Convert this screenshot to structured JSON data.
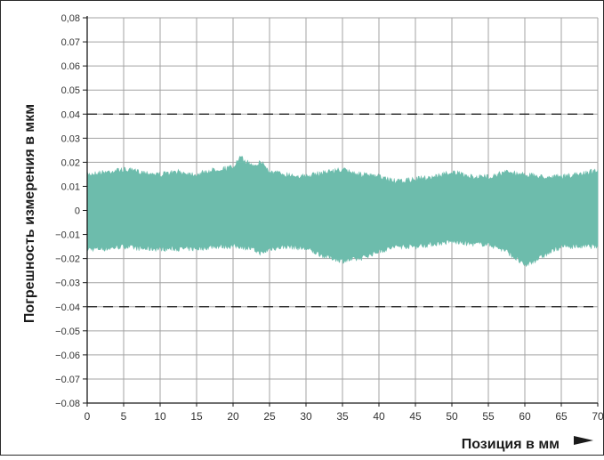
{
  "chart_data": {
    "type": "area",
    "xlabel": "Позиция в мм",
    "ylabel": "Погрешность измерения в мкм",
    "xlim": [
      0,
      70
    ],
    "ylim": [
      -0.08,
      0.08
    ],
    "x_ticks": [
      0,
      5,
      10,
      15,
      20,
      25,
      30,
      35,
      40,
      45,
      50,
      55,
      60,
      65,
      70
    ],
    "y_ticks": [
      0.08,
      0.07,
      0.06,
      0.05,
      0.04,
      0.03,
      0.02,
      0.01,
      0,
      -0.01,
      -0.02,
      -0.03,
      -0.04,
      -0.05,
      -0.06,
      -0.07,
      -0.08
    ],
    "x_tick_labels": [
      "0",
      "5",
      "10",
      "15",
      "20",
      "25",
      "30",
      "35",
      "40",
      "45",
      "50",
      "55",
      "60",
      "65",
      "70"
    ],
    "y_tick_labels": [
      "0,08",
      "0.07",
      "0.06",
      "0.05",
      "0.04",
      "0.03",
      "0.02",
      "0.01",
      "0",
      "−0.01",
      "−0.02",
      "−0.03",
      "−0.04",
      "−0.05",
      "−0.06",
      "−0.07",
      "−0.08"
    ],
    "grid": true,
    "tolerance_lines": [
      0.04,
      -0.04
    ],
    "series": [
      {
        "color": "#6dbcac",
        "x": [
          0,
          2.5,
          5,
          7.5,
          10,
          12.5,
          15,
          17.5,
          20,
          21,
          22.5,
          24,
          25,
          27.5,
          30,
          32.5,
          35,
          37.5,
          40,
          42.5,
          45,
          47.5,
          50,
          52.5,
          55,
          57.5,
          60,
          62.5,
          65,
          67.5,
          70
        ],
        "upper": [
          0.016,
          0.017,
          0.018,
          0.017,
          0.016,
          0.017,
          0.016,
          0.018,
          0.019,
          0.023,
          0.02,
          0.021,
          0.017,
          0.016,
          0.015,
          0.017,
          0.018,
          0.016,
          0.015,
          0.013,
          0.014,
          0.015,
          0.017,
          0.015,
          0.015,
          0.017,
          0.016,
          0.015,
          0.015,
          0.016,
          0.018
        ],
        "lower": [
          -0.017,
          -0.017,
          -0.016,
          -0.017,
          -0.017,
          -0.017,
          -0.017,
          -0.016,
          -0.016,
          -0.016,
          -0.017,
          -0.019,
          -0.017,
          -0.016,
          -0.017,
          -0.02,
          -0.022,
          -0.021,
          -0.018,
          -0.016,
          -0.016,
          -0.015,
          -0.014,
          -0.015,
          -0.015,
          -0.018,
          -0.024,
          -0.02,
          -0.016,
          -0.016,
          -0.016
        ]
      }
    ],
    "grid_color": "#a3a3a3",
    "tolerance_color": "#1a1a1a"
  }
}
